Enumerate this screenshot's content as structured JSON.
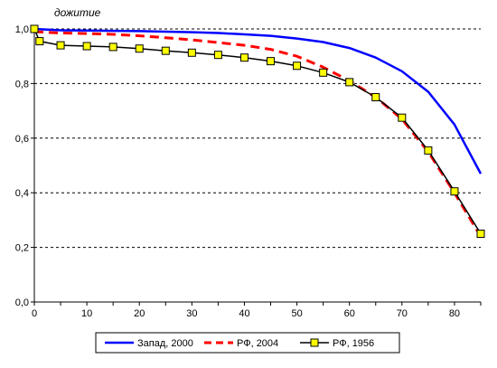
{
  "chart_data": {
    "type": "line",
    "title": "",
    "xlabel": "",
    "ylabel": "дожитие",
    "xlim": [
      0,
      85
    ],
    "ylim": [
      0,
      1
    ],
    "x_ticks": [
      0,
      10,
      20,
      30,
      40,
      50,
      60,
      70,
      80
    ],
    "y_ticks": [
      "0,0",
      "0,2",
      "0,4",
      "0,6",
      "0,8",
      "1,0"
    ],
    "y_tick_values": [
      0,
      0.2,
      0.4,
      0.6,
      0.8,
      1.0
    ],
    "grid": "horizontal dashed",
    "legend_position": "bottom",
    "series": [
      {
        "name": "Запад, 2000",
        "color": "#0000FF",
        "style": "solid",
        "marker": "none",
        "x": [
          0,
          5,
          10,
          15,
          20,
          25,
          30,
          35,
          40,
          45,
          50,
          55,
          60,
          65,
          70,
          75,
          80,
          85
        ],
        "y": [
          1.0,
          0.995,
          0.994,
          0.993,
          0.992,
          0.99,
          0.988,
          0.985,
          0.98,
          0.975,
          0.965,
          0.952,
          0.93,
          0.895,
          0.845,
          0.77,
          0.65,
          0.47
        ]
      },
      {
        "name": "РФ, 2004",
        "color": "#FF0000",
        "style": "dashed",
        "marker": "none",
        "x": [
          0,
          5,
          10,
          15,
          20,
          25,
          30,
          35,
          40,
          45,
          50,
          55,
          60,
          65,
          70,
          75,
          80,
          85
        ],
        "y": [
          0.99,
          0.985,
          0.983,
          0.98,
          0.975,
          0.968,
          0.96,
          0.95,
          0.94,
          0.925,
          0.9,
          0.86,
          0.81,
          0.75,
          0.67,
          0.55,
          0.4,
          0.24
        ]
      },
      {
        "name": "РФ, 1956",
        "color": "#000000",
        "style": "solid",
        "marker": "square",
        "marker_color": "#FFFF00",
        "x": [
          0,
          1,
          5,
          10,
          15,
          20,
          25,
          30,
          35,
          40,
          45,
          50,
          55,
          60,
          65,
          70,
          75,
          80,
          85
        ],
        "y": [
          1.0,
          0.955,
          0.94,
          0.937,
          0.934,
          0.928,
          0.92,
          0.913,
          0.905,
          0.895,
          0.882,
          0.865,
          0.84,
          0.805,
          0.75,
          0.675,
          0.555,
          0.405,
          0.25
        ]
      }
    ]
  }
}
